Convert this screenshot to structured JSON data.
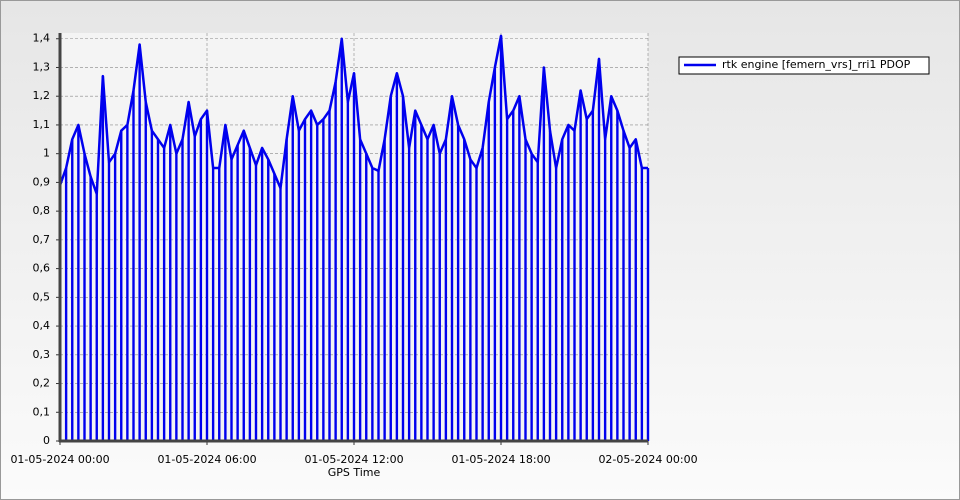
{
  "chart_data": {
    "type": "line",
    "x_label": "GPS Time",
    "x": [
      "01-05-2024 00:00",
      "01-05-2024 00:15",
      "01-05-2024 00:30",
      "01-05-2024 00:45",
      "01-05-2024 01:00",
      "01-05-2024 01:15",
      "01-05-2024 01:30",
      "01-05-2024 01:45",
      "01-05-2024 02:00",
      "01-05-2024 02:15",
      "01-05-2024 02:30",
      "01-05-2024 02:45",
      "01-05-2024 03:00",
      "01-05-2024 03:15",
      "01-05-2024 03:30",
      "01-05-2024 03:45",
      "01-05-2024 04:00",
      "01-05-2024 04:15",
      "01-05-2024 04:30",
      "01-05-2024 04:45",
      "01-05-2024 05:00",
      "01-05-2024 05:15",
      "01-05-2024 05:30",
      "01-05-2024 05:45",
      "01-05-2024 06:00",
      "01-05-2024 06:15",
      "01-05-2024 06:30",
      "01-05-2024 06:45",
      "01-05-2024 07:00",
      "01-05-2024 07:15",
      "01-05-2024 07:30",
      "01-05-2024 07:45",
      "01-05-2024 08:00",
      "01-05-2024 08:15",
      "01-05-2024 08:30",
      "01-05-2024 08:45",
      "01-05-2024 09:00",
      "01-05-2024 09:15",
      "01-05-2024 09:30",
      "01-05-2024 09:45",
      "01-05-2024 10:00",
      "01-05-2024 10:15",
      "01-05-2024 10:30",
      "01-05-2024 10:45",
      "01-05-2024 11:00",
      "01-05-2024 11:15",
      "01-05-2024 11:30",
      "01-05-2024 11:45",
      "01-05-2024 12:00",
      "01-05-2024 12:15",
      "01-05-2024 12:30",
      "01-05-2024 12:45",
      "01-05-2024 13:00",
      "01-05-2024 13:15",
      "01-05-2024 13:30",
      "01-05-2024 13:45",
      "01-05-2024 14:00",
      "01-05-2024 14:15",
      "01-05-2024 14:30",
      "01-05-2024 14:45",
      "01-05-2024 15:00",
      "01-05-2024 15:15",
      "01-05-2024 15:30",
      "01-05-2024 15:45",
      "01-05-2024 16:00",
      "01-05-2024 16:15",
      "01-05-2024 16:30",
      "01-05-2024 16:45",
      "01-05-2024 17:00",
      "01-05-2024 17:15",
      "01-05-2024 17:30",
      "01-05-2024 17:45",
      "01-05-2024 18:00",
      "01-05-2024 18:15",
      "01-05-2024 18:30",
      "01-05-2024 18:45",
      "01-05-2024 19:00",
      "01-05-2024 19:15",
      "01-05-2024 19:30",
      "01-05-2024 19:45",
      "01-05-2024 20:00",
      "01-05-2024 20:15",
      "01-05-2024 20:30",
      "01-05-2024 20:45",
      "01-05-2024 21:00",
      "01-05-2024 21:15",
      "01-05-2024 21:30",
      "01-05-2024 21:45",
      "01-05-2024 22:00",
      "01-05-2024 22:15",
      "01-05-2024 22:30",
      "01-05-2024 22:45",
      "01-05-2024 23:00",
      "01-05-2024 23:15",
      "01-05-2024 23:30",
      "01-05-2024 23:45",
      "02-05-2024 00:00"
    ],
    "series": [
      {
        "name": "rtk engine [femern_vrs]_rri1 PDOP",
        "color": "#0000ee",
        "values": [
          0.89,
          0.95,
          1.05,
          1.1,
          1.0,
          0.92,
          0.86,
          1.27,
          0.97,
          1.0,
          1.08,
          1.1,
          1.22,
          1.38,
          1.18,
          1.08,
          1.05,
          1.02,
          1.1,
          1.0,
          1.05,
          1.18,
          1.06,
          1.12,
          1.15,
          0.95,
          0.95,
          1.1,
          0.98,
          1.03,
          1.08,
          1.02,
          0.96,
          1.02,
          0.98,
          0.93,
          0.88,
          1.05,
          1.2,
          1.08,
          1.12,
          1.15,
          1.1,
          1.12,
          1.15,
          1.25,
          1.4,
          1.18,
          1.28,
          1.05,
          1.0,
          0.95,
          0.94,
          1.05,
          1.2,
          1.28,
          1.2,
          1.02,
          1.15,
          1.1,
          1.05,
          1.1,
          1.0,
          1.05,
          1.2,
          1.1,
          1.05,
          0.98,
          0.95,
          1.02,
          1.18,
          1.3,
          1.41,
          1.12,
          1.15,
          1.2,
          1.05,
          1.0,
          0.97,
          1.3,
          1.08,
          0.95,
          1.05,
          1.1,
          1.08,
          1.22,
          1.12,
          1.15,
          1.33,
          1.05,
          1.2,
          1.15,
          1.08,
          1.02,
          1.05,
          0.95,
          0.95
        ]
      }
    ],
    "xlim": [
      "01-05-2024 00:00",
      "02-05-2024 00:00"
    ],
    "xticks": [
      "01-05-2024 00:00",
      "01-05-2024 06:00",
      "01-05-2024 12:00",
      "01-05-2024 18:00",
      "02-05-2024 00:00"
    ],
    "ylim": [
      0,
      1.42
    ],
    "yticks": [
      0,
      {
        "value": 0.1,
        "label": "0,1"
      },
      {
        "value": 0.2,
        "label": "0,2"
      },
      {
        "value": 0.3,
        "label": "0,3"
      },
      {
        "value": 0.4,
        "label": "0,4"
      },
      {
        "value": 0.5,
        "label": "0,5"
      },
      {
        "value": 0.6,
        "label": "0,6"
      },
      {
        "value": 0.7,
        "label": "0,7"
      },
      {
        "value": 0.8,
        "label": "0,8"
      },
      {
        "value": 0.9,
        "label": "0,9"
      },
      1,
      {
        "value": 1.1,
        "label": "1,1"
      },
      {
        "value": 1.2,
        "label": "1,2"
      },
      {
        "value": 1.3,
        "label": "1,3"
      },
      {
        "value": 1.4,
        "label": "1,4"
      }
    ],
    "grid": true,
    "legend": "top-right"
  }
}
